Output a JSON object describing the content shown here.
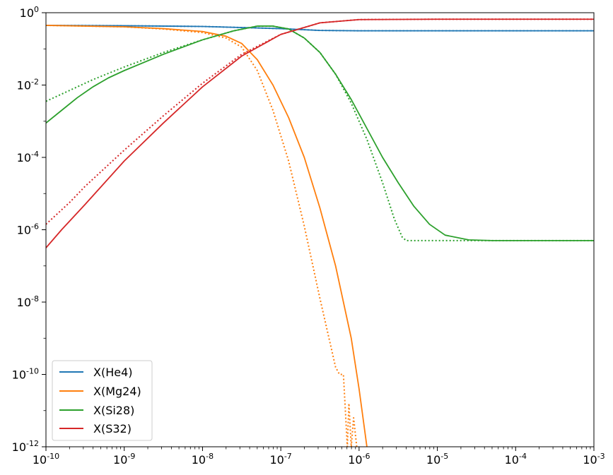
{
  "chart_data": {
    "type": "line",
    "title": "",
    "xlabel": "",
    "ylabel": "",
    "xscale": "log",
    "yscale": "log",
    "xlim": [
      1e-10,
      0.001
    ],
    "ylim": [
      1e-12,
      1
    ],
    "grid": false,
    "legend_position": "lower-left",
    "x_ticks": [
      {
        "base": "10",
        "exp": "-10"
      },
      {
        "base": "10",
        "exp": "-9"
      },
      {
        "base": "10",
        "exp": "-8"
      },
      {
        "base": "10",
        "exp": "-7"
      },
      {
        "base": "10",
        "exp": "-6"
      },
      {
        "base": "10",
        "exp": "-5"
      },
      {
        "base": "10",
        "exp": "-4"
      },
      {
        "base": "10",
        "exp": "-3"
      }
    ],
    "y_ticks": [
      {
        "base": "10",
        "exp": "0"
      },
      {
        "base": "10",
        "exp": "-2"
      },
      {
        "base": "10",
        "exp": "-4"
      },
      {
        "base": "10",
        "exp": "-6"
      },
      {
        "base": "10",
        "exp": "-8"
      },
      {
        "base": "10",
        "exp": "-10"
      },
      {
        "base": "10",
        "exp": "-12"
      }
    ],
    "series": [
      {
        "name": "X(He4)",
        "color": "#1f77b4",
        "style": "solid",
        "points": [
          [
            -10,
            -0.35
          ],
          [
            -9,
            -0.36
          ],
          [
            -8,
            -0.38
          ],
          [
            -7.5,
            -0.41
          ],
          [
            -7,
            -0.44
          ],
          [
            -6.7,
            -0.47
          ],
          [
            -6.5,
            -0.49
          ],
          [
            -6,
            -0.5
          ],
          [
            -5,
            -0.5
          ],
          [
            -3,
            -0.5
          ]
        ]
      },
      {
        "name": "X(He4)",
        "color": "#1f77b4",
        "style": "dotted",
        "points": [
          [
            -10,
            -0.35
          ],
          [
            -9,
            -0.36
          ],
          [
            -8,
            -0.38
          ],
          [
            -7.5,
            -0.41
          ],
          [
            -7,
            -0.44
          ],
          [
            -6.7,
            -0.47
          ],
          [
            -6.5,
            -0.49
          ],
          [
            -6,
            -0.5
          ],
          [
            -5,
            -0.5
          ],
          [
            -3,
            -0.5
          ]
        ]
      },
      {
        "name": "X(Mg24)",
        "color": "#ff7f0e",
        "style": "solid",
        "points": [
          [
            -10,
            -0.35
          ],
          [
            -9.5,
            -0.37
          ],
          [
            -9,
            -0.39
          ],
          [
            -8.5,
            -0.44
          ],
          [
            -8,
            -0.52
          ],
          [
            -7.7,
            -0.65
          ],
          [
            -7.5,
            -0.85
          ],
          [
            -7.3,
            -1.3
          ],
          [
            -7.1,
            -2.0
          ],
          [
            -6.9,
            -2.9
          ],
          [
            -6.7,
            -4.0
          ],
          [
            -6.5,
            -5.4
          ],
          [
            -6.3,
            -7.0
          ],
          [
            -6.1,
            -9.0
          ],
          [
            -6.0,
            -10.4
          ],
          [
            -5.9,
            -12.0
          ]
        ]
      },
      {
        "name": "X(Mg24)",
        "color": "#ff7f0e",
        "style": "dotted",
        "points": [
          [
            -10,
            -0.35
          ],
          [
            -9.5,
            -0.37
          ],
          [
            -9,
            -0.39
          ],
          [
            -8.5,
            -0.45
          ],
          [
            -8,
            -0.55
          ],
          [
            -7.7,
            -0.7
          ],
          [
            -7.5,
            -0.95
          ],
          [
            -7.3,
            -1.6
          ],
          [
            -7.1,
            -2.7
          ],
          [
            -6.9,
            -4.1
          ],
          [
            -6.7,
            -5.9
          ],
          [
            -6.5,
            -7.9
          ],
          [
            -6.3,
            -9.8
          ],
          [
            -6.25,
            -10.0
          ],
          [
            -6.2,
            -10.0
          ],
          [
            -6.15,
            -12.0
          ],
          [
            -6.13,
            -10.8
          ],
          [
            -6.1,
            -12.0
          ],
          [
            -6.07,
            -11.2
          ],
          [
            -6.03,
            -12.0
          ]
        ]
      },
      {
        "name": "X(Si28)",
        "color": "#2ca02c",
        "style": "solid",
        "points": [
          [
            -10,
            -3.05
          ],
          [
            -9.8,
            -2.7
          ],
          [
            -9.6,
            -2.35
          ],
          [
            -9.4,
            -2.05
          ],
          [
            -9.2,
            -1.8
          ],
          [
            -9,
            -1.6
          ],
          [
            -8.5,
            -1.15
          ],
          [
            -8,
            -0.75
          ],
          [
            -7.6,
            -0.5
          ],
          [
            -7.3,
            -0.37
          ],
          [
            -7.1,
            -0.37
          ],
          [
            -6.9,
            -0.45
          ],
          [
            -6.7,
            -0.7
          ],
          [
            -6.5,
            -1.1
          ],
          [
            -6.3,
            -1.7
          ],
          [
            -6.1,
            -2.4
          ],
          [
            -5.9,
            -3.2
          ],
          [
            -5.7,
            -4.0
          ],
          [
            -5.5,
            -4.7
          ],
          [
            -5.3,
            -5.35
          ],
          [
            -5.1,
            -5.85
          ],
          [
            -4.9,
            -6.15
          ],
          [
            -4.6,
            -6.28
          ],
          [
            -4.3,
            -6.3
          ],
          [
            -3,
            -6.3
          ]
        ]
      },
      {
        "name": "X(Si28)",
        "color": "#2ca02c",
        "style": "dotted",
        "points": [
          [
            -10,
            -2.45
          ],
          [
            -9.7,
            -2.15
          ],
          [
            -9.4,
            -1.85
          ],
          [
            -9,
            -1.5
          ],
          [
            -8.5,
            -1.1
          ],
          [
            -8,
            -0.75
          ],
          [
            -7.6,
            -0.5
          ],
          [
            -7.3,
            -0.37
          ],
          [
            -7.1,
            -0.37
          ],
          [
            -6.9,
            -0.45
          ],
          [
            -6.7,
            -0.7
          ],
          [
            -6.5,
            -1.1
          ],
          [
            -6.3,
            -1.7
          ],
          [
            -6.1,
            -2.5
          ],
          [
            -5.9,
            -3.5
          ],
          [
            -5.7,
            -4.7
          ],
          [
            -5.55,
            -5.7
          ],
          [
            -5.45,
            -6.2
          ],
          [
            -5.4,
            -6.3
          ],
          [
            -4.5,
            -6.3
          ],
          [
            -3,
            -6.3
          ]
        ]
      },
      {
        "name": "X(S32)",
        "color": "#d62728",
        "style": "solid",
        "points": [
          [
            -10,
            -6.5
          ],
          [
            -9.8,
            -6.0
          ],
          [
            -9.5,
            -5.3
          ],
          [
            -9,
            -4.1
          ],
          [
            -8.5,
            -3.05
          ],
          [
            -8,
            -2.05
          ],
          [
            -7.5,
            -1.2
          ],
          [
            -7,
            -0.6
          ],
          [
            -6.5,
            -0.28
          ],
          [
            -6,
            -0.19
          ],
          [
            -5,
            -0.18
          ],
          [
            -3,
            -0.18
          ]
        ]
      },
      {
        "name": "X(S32)",
        "color": "#d62728",
        "style": "dotted",
        "points": [
          [
            -10,
            -5.85
          ],
          [
            -9.7,
            -5.25
          ],
          [
            -9.5,
            -4.8
          ],
          [
            -9,
            -3.8
          ],
          [
            -8.5,
            -2.85
          ],
          [
            -8,
            -1.95
          ],
          [
            -7.5,
            -1.15
          ],
          [
            -7,
            -0.6
          ],
          [
            -6.5,
            -0.28
          ],
          [
            -6,
            -0.19
          ],
          [
            -5,
            -0.18
          ],
          [
            -3,
            -0.18
          ]
        ]
      }
    ],
    "legend": [
      {
        "label": "X(He4)",
        "color": "#1f77b4"
      },
      {
        "label": "X(Mg24)",
        "color": "#ff7f0e"
      },
      {
        "label": "X(Si28)",
        "color": "#2ca02c"
      },
      {
        "label": "X(S32)",
        "color": "#d62728"
      }
    ]
  }
}
